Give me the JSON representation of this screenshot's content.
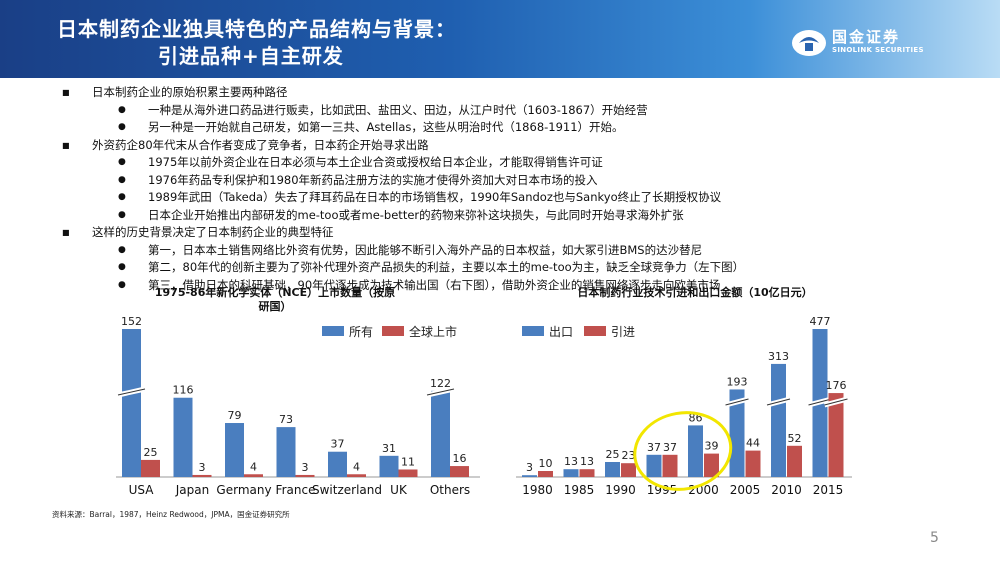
{
  "header": {
    "title_line1": "日本制药企业独具特色的产品结构与背景：",
    "title_line2": "引进品种+自主研发",
    "logo_name": "国金证券",
    "logo_en": "SINOLINK SECURITIES"
  },
  "bullets": [
    {
      "level": 1,
      "text": "日本制药企业的原始积累主要两种路径"
    },
    {
      "level": 2,
      "text": "一种是从海外进口药品进行贩卖，比如武田、盐田义、田边，从江户时代（1603-1867）开始经营"
    },
    {
      "level": 2,
      "text": "另一种是一开始就自己研发，如第一三共、Astellas，这些从明治时代（1868-1911）开始。"
    },
    {
      "level": 1,
      "text": "外资药企80年代末从合作者变成了竞争者，日本药企开始寻求出路"
    },
    {
      "level": 2,
      "text": "1975年以前外资企业在日本必须与本土企业合资或授权给日本企业，才能取得销售许可证"
    },
    {
      "level": 2,
      "text": "1976年药品专利保护和1980年新药品注册方法的实施才使得外资加大对日本市场的投入"
    },
    {
      "level": 2,
      "text": "1989年武田（Takeda）失去了拜耳药品在日本的市场销售权，1990年Sandoz也与Sankyo终止了长期授权协议"
    },
    {
      "level": 2,
      "text": "日本企业开始推出内部研发的me-too或者me-better的药物来弥补这块损失，与此同时开始寻求海外扩张"
    },
    {
      "level": 1,
      "text": "这样的历史背景决定了日本制药企业的典型特征"
    },
    {
      "level": 2,
      "text": "第一，日本本土销售网络比外资有优势，因此能够不断引入海外产品的日本权益，如大冢引进BMS的达沙替尼"
    },
    {
      "level": 2,
      "text": "第二，80年代的创新主要为了弥补代理外资产品损失的利益，主要以本土的me-too为主，缺乏全球竞争力（左下图）"
    },
    {
      "level": 2,
      "text": "第三，借助日本的科研基础，90年代逐步成为技术输出国（右下图），借助外资企业的销售网络逐步走向欧美市场"
    }
  ],
  "chart_data": [
    {
      "type": "bar",
      "title": "1975-86年新化学实体（NCE）上市数量（按原研国）",
      "categories": [
        "USA",
        "Japan",
        "Germany",
        "France",
        "Switzerland",
        "UK",
        "Others"
      ],
      "series": [
        {
          "name": "所有",
          "color": "#4a7ebf",
          "values": [
            152,
            116,
            79,
            73,
            37,
            31,
            122
          ]
        },
        {
          "name": "全球上市",
          "color": "#c0504d",
          "values": [
            25,
            3,
            4,
            3,
            4,
            11,
            16
          ]
        }
      ],
      "axis_break": true
    },
    {
      "type": "bar",
      "title": "日本制药行业技术引进和出口金额（10亿日元）",
      "categories": [
        "1980",
        "1985",
        "1990",
        "1995",
        "2000",
        "2005",
        "2010",
        "2015"
      ],
      "series": [
        {
          "name": "出口",
          "color": "#4a7ebf",
          "values": [
            3,
            13,
            25,
            37,
            86,
            193,
            313,
            477
          ]
        },
        {
          "name": "引进",
          "color": "#c0504d",
          "values": [
            10,
            13,
            23,
            37,
            39,
            44,
            52,
            176
          ]
        }
      ],
      "axis_break": true,
      "highlight_categories": [
        "1995",
        "2000"
      ],
      "highlight_color": "#f2e600"
    }
  ],
  "source_text": "资料来源：Barral，1987，Heinz  Redwood，JPMA，国金证券研究所",
  "page_number": "5"
}
